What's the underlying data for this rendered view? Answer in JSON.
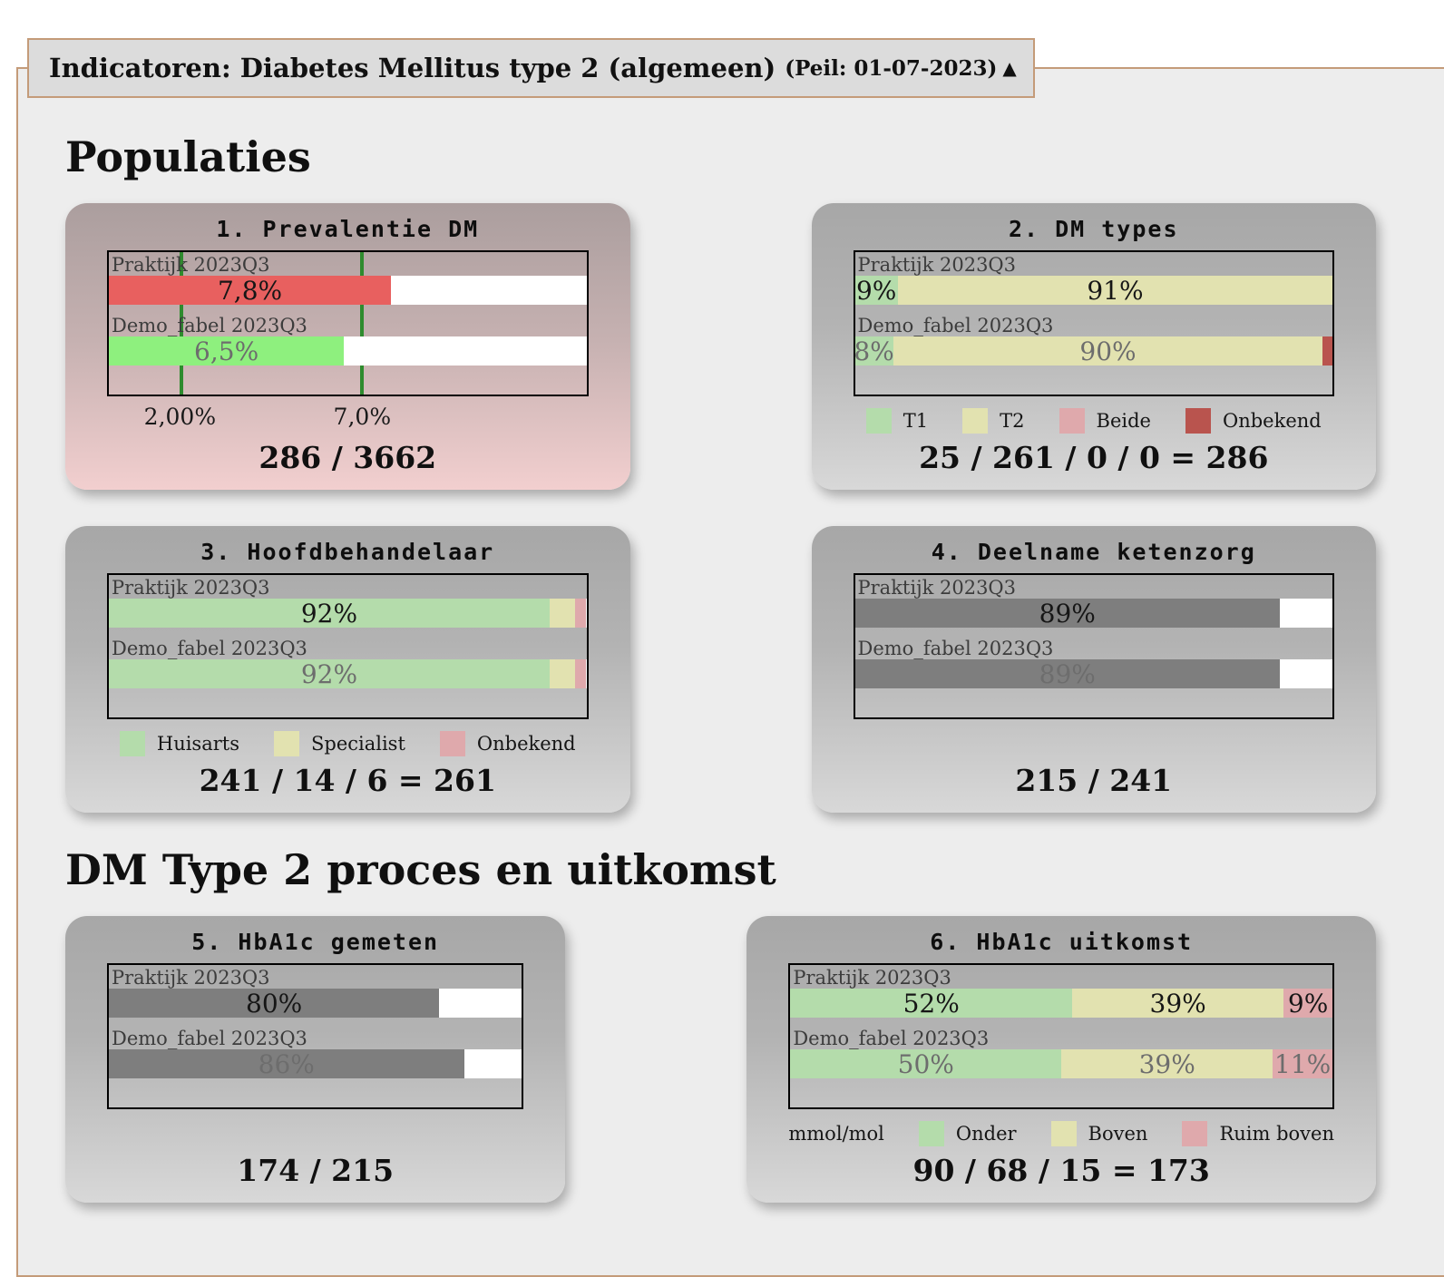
{
  "header": {
    "title": "Indicatoren: Diabetes Mellitus type 2 (algemeen)",
    "peil": "(Peil: 01-07-2023)",
    "collapse_icon": "▲"
  },
  "colors": {
    "border_tan": "#c49b79",
    "threshold_green": "#2e8b2e",
    "alert_red": "#e8605f",
    "bright_green": "#8ef07e",
    "pale_green": "#b4dcab",
    "khaki": "#e2e2b0",
    "pink": "#dfa9ac",
    "dark_red": "#b9544e",
    "dark_gray": "#7e7e7e"
  },
  "sections": [
    {
      "heading": "Populaties",
      "panels": [
        0,
        1,
        2,
        3
      ]
    },
    {
      "heading": "DM Type 2 proces en uitkomst",
      "panels": [
        4,
        5
      ]
    }
  ],
  "chart_data": [
    {
      "type": "bar",
      "title": "1. Prevalentie DM",
      "style": "alert",
      "scale_max": 13.2,
      "thresholds": [
        {
          "value": 2.0,
          "label": "2,00%"
        },
        {
          "value": 7.0,
          "label": "7,0%"
        }
      ],
      "rows": [
        {
          "label": "Praktijk 2023Q3",
          "dim": false,
          "segments": [
            {
              "value": 7.8,
              "label": "7,8%",
              "color": "#e8605f"
            }
          ]
        },
        {
          "label": "Demo_fabel 2023Q3",
          "dim": true,
          "segments": [
            {
              "value": 6.5,
              "label": "6,5%",
              "color": "#8ef07e"
            }
          ]
        }
      ],
      "summary": "286 / 3662"
    },
    {
      "type": "bar",
      "title": "2. DM types",
      "style": "gray",
      "scale_max": 100,
      "rows": [
        {
          "label": "Praktijk 2023Q3",
          "dim": false,
          "segments": [
            {
              "value": 9,
              "label": "9%",
              "color": "#b4dcab"
            },
            {
              "value": 91,
              "label": "91%",
              "color": "#e2e2b0"
            }
          ]
        },
        {
          "label": "Demo_fabel 2023Q3",
          "dim": true,
          "segments": [
            {
              "value": 8,
              "label": "8%",
              "color": "#b4dcab"
            },
            {
              "value": 90,
              "label": "90%",
              "color": "#e2e2b0"
            },
            {
              "value": 2,
              "label": "",
              "color": "#b9544e"
            }
          ]
        }
      ],
      "legend": [
        {
          "label": "T1",
          "color": "#b4dcab"
        },
        {
          "label": "T2",
          "color": "#e2e2b0"
        },
        {
          "label": "Beide",
          "color": "#dfa9ac"
        },
        {
          "label": "Onbekend",
          "color": "#b9544e"
        }
      ],
      "summary": "25 / 261 / 0 / 0 = 286"
    },
    {
      "type": "bar",
      "title": "3. Hoofdbehandelaar",
      "style": "gray",
      "scale_max": 100,
      "rows": [
        {
          "label": "Praktijk 2023Q3",
          "dim": false,
          "segments": [
            {
              "value": 92.3,
              "label": "92%",
              "color": "#b4dcab"
            },
            {
              "value": 5.4,
              "label": "",
              "color": "#e2e2b0"
            },
            {
              "value": 2.3,
              "label": "",
              "color": "#dfa9ac"
            }
          ]
        },
        {
          "label": "Demo_fabel 2023Q3",
          "dim": true,
          "segments": [
            {
              "value": 92.3,
              "label": "92%",
              "color": "#b4dcab"
            },
            {
              "value": 5.4,
              "label": "",
              "color": "#e2e2b0"
            },
            {
              "value": 2.3,
              "label": "",
              "color": "#dfa9ac"
            }
          ]
        }
      ],
      "legend": [
        {
          "label": "Huisarts",
          "color": "#b4dcab"
        },
        {
          "label": "Specialist",
          "color": "#e2e2b0"
        },
        {
          "label": "Onbekend",
          "color": "#dfa9ac"
        }
      ],
      "summary": "241 / 14 / 6 = 261"
    },
    {
      "type": "bar",
      "title": "4. Deelname ketenzorg",
      "style": "gray",
      "scale_max": 100,
      "rows": [
        {
          "label": "Praktijk 2023Q3",
          "dim": false,
          "segments": [
            {
              "value": 89,
              "label": "89%",
              "color": "#7e7e7e"
            }
          ]
        },
        {
          "label": "Demo_fabel 2023Q3",
          "dim": true,
          "segments": [
            {
              "value": 89,
              "label": "89%",
              "color": "#7e7e7e"
            }
          ]
        }
      ],
      "summary": "215 / 241"
    },
    {
      "type": "bar",
      "title": "5. HbA1c gemeten",
      "style": "gray",
      "scale_max": 100,
      "rows": [
        {
          "label": "Praktijk 2023Q3",
          "dim": false,
          "segments": [
            {
              "value": 80,
              "label": "80%",
              "color": "#7e7e7e"
            }
          ]
        },
        {
          "label": "Demo_fabel 2023Q3",
          "dim": true,
          "segments": [
            {
              "value": 86,
              "label": "86%",
              "color": "#7e7e7e"
            }
          ]
        }
      ],
      "summary": "174 / 215"
    },
    {
      "type": "bar",
      "title": "6. HbA1c uitkomst",
      "style": "gray",
      "scale_max": 100,
      "legend_prefix": "mmol/mol",
      "rows": [
        {
          "label": "Praktijk 2023Q3",
          "dim": false,
          "segments": [
            {
              "value": 52,
              "label": "52%",
              "color": "#b4dcab"
            },
            {
              "value": 39,
              "label": "39%",
              "color": "#e2e2b0"
            },
            {
              "value": 9,
              "label": "9%",
              "color": "#dfa9ac"
            }
          ]
        },
        {
          "label": "Demo_fabel 2023Q3",
          "dim": true,
          "segments": [
            {
              "value": 50,
              "label": "50%",
              "color": "#b4dcab"
            },
            {
              "value": 39,
              "label": "39%",
              "color": "#e2e2b0"
            },
            {
              "value": 11,
              "label": "11%",
              "color": "#dfa9ac"
            }
          ]
        }
      ],
      "legend": [
        {
          "label": "Onder",
          "color": "#b4dcab"
        },
        {
          "label": "Boven",
          "color": "#e2e2b0"
        },
        {
          "label": "Ruim boven",
          "color": "#dfa9ac"
        }
      ],
      "summary": "90 / 68 / 15 = 173"
    }
  ]
}
